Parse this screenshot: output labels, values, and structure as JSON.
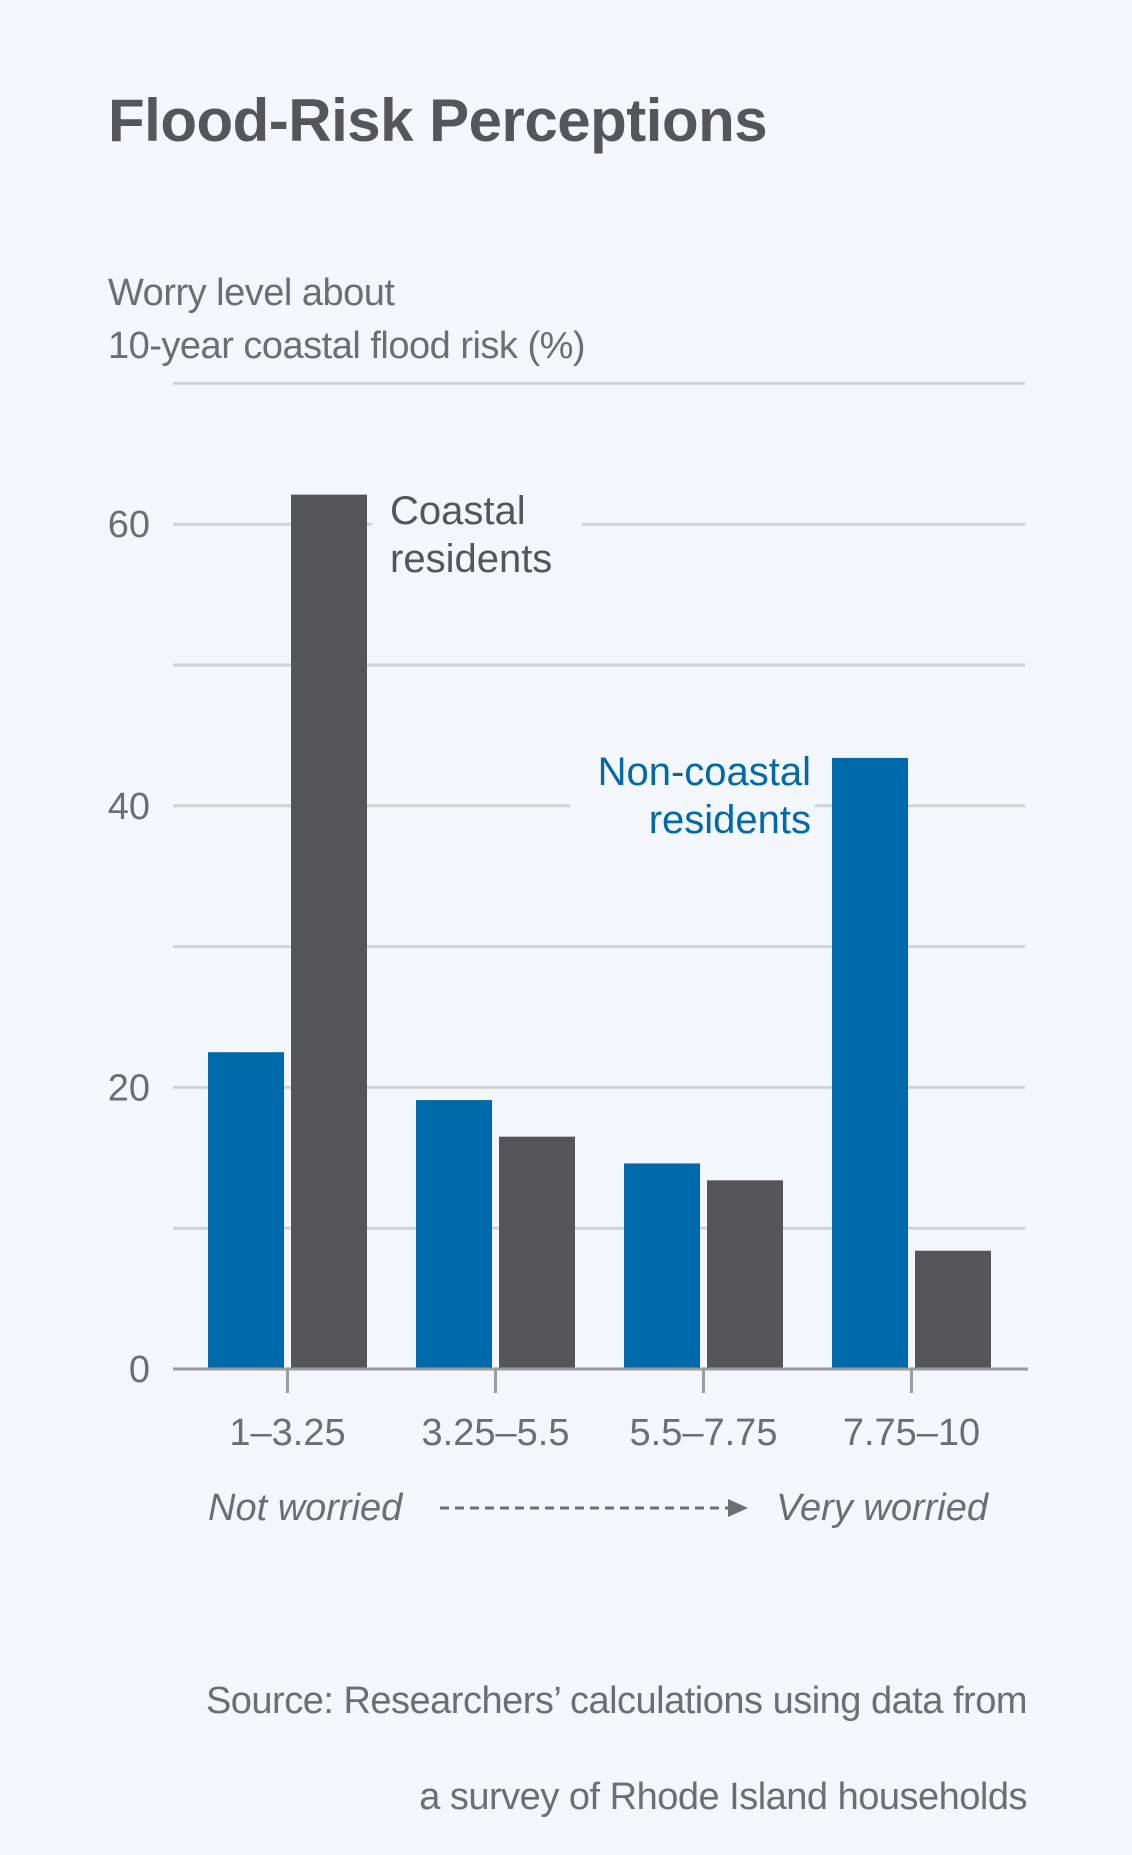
{
  "chart_data": {
    "type": "bar",
    "title": "Flood-Risk Perceptions",
    "ylabel_lines": [
      "Worry level about",
      "10-year coastal flood risk (%)"
    ],
    "xlabel": "",
    "categories": [
      "1–3.25",
      "3.25–5.5",
      "5.5–7.75",
      "7.75–10"
    ],
    "series": [
      {
        "name": "Non-coastal residents",
        "label_lines": [
          "Non-coastal",
          "residents"
        ],
        "color": "#0069aa",
        "values": [
          22.5,
          19.1,
          14.6,
          43.4
        ]
      },
      {
        "name": "Coastal residents",
        "label_lines": [
          "Coastal",
          "residents"
        ],
        "color": "#545459",
        "values": [
          62.1,
          16.5,
          13.4,
          8.4
        ]
      }
    ],
    "ylim": [
      0,
      70
    ],
    "yticks": [
      0,
      20,
      40,
      60
    ],
    "gridlines": [
      10,
      20,
      30,
      40,
      50,
      60,
      70
    ],
    "grid": true,
    "scale_annotation": {
      "left": "Not worried",
      "right": "Very worried"
    },
    "source_lines": [
      "Source: Researchers’ calculations using data from",
      "a survey of Rhode Island households"
    ]
  }
}
